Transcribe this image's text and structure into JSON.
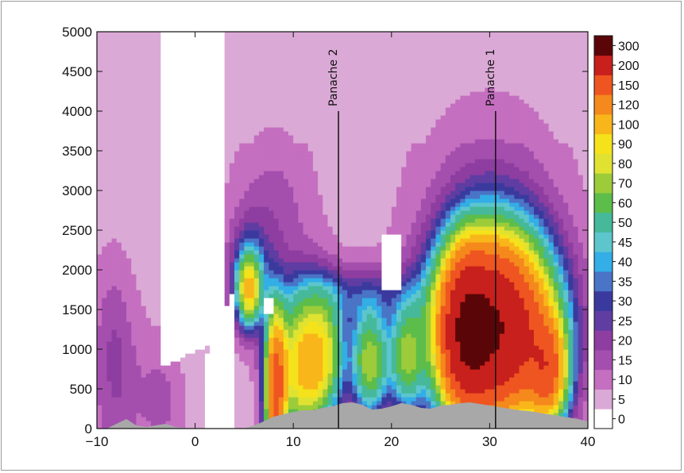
{
  "chart_data": {
    "type": "heatmap",
    "title": "",
    "xlabel": "",
    "ylabel": "",
    "xlim": [
      -10,
      40
    ],
    "ylim": [
      0,
      5000
    ],
    "x_ticks": [
      -10,
      0,
      10,
      20,
      30,
      40
    ],
    "x_tick_labels": [
      "−10",
      "0",
      "10",
      "20",
      "30",
      "40"
    ],
    "y_ticks": [
      0,
      500,
      1000,
      1500,
      2000,
      2500,
      3000,
      3500,
      4000,
      4500,
      5000
    ],
    "y_tick_labels": [
      "0",
      "500",
      "1000",
      "1500",
      "2000",
      "2500",
      "3000",
      "3500",
      "4000",
      "4500",
      "5000"
    ],
    "grid": false,
    "colorbar": {
      "placement": "right",
      "levels": [
        "0",
        "5",
        "10",
        "15",
        "20",
        "25",
        "30",
        "35",
        "40",
        "45",
        "50",
        "60",
        "70",
        "80",
        "90",
        "100",
        "120",
        "150",
        "200",
        "300"
      ],
      "colors": [
        "#ffffff",
        "#dba9d6",
        "#c56fc0",
        "#a44fae",
        "#8e3da0",
        "#5f3da2",
        "#3a3a9e",
        "#4a74c6",
        "#33aee6",
        "#5cc6cc",
        "#45b99a",
        "#5cbd4a",
        "#9ccc3a",
        "#e0e232",
        "#f5e21a",
        "#f9b61a",
        "#f5891c",
        "#ef5520",
        "#c8201c",
        "#5a0608"
      ]
    },
    "terrain_color": "#a8a8a8",
    "terrain": {
      "x": [
        -10,
        -9,
        -8,
        -7,
        -6,
        -5,
        -4,
        -3,
        -2,
        -1,
        0,
        1,
        2,
        3,
        4,
        5,
        6,
        7,
        8,
        9,
        10,
        11,
        12,
        13,
        14,
        15,
        16,
        17,
        18,
        19,
        20,
        21,
        22,
        23,
        24,
        25,
        26,
        27,
        28,
        29,
        30,
        31,
        32,
        33,
        34,
        35,
        36,
        37,
        38,
        39,
        40
      ],
      "y": [
        0,
        0,
        60,
        120,
        40,
        20,
        40,
        60,
        20,
        10,
        0,
        0,
        0,
        0,
        0,
        0,
        40,
        90,
        150,
        180,
        210,
        230,
        230,
        260,
        280,
        320,
        330,
        300,
        240,
        250,
        280,
        320,
        300,
        260,
        250,
        290,
        300,
        320,
        330,
        310,
        290,
        270,
        250,
        230,
        220,
        200,
        180,
        160,
        140,
        120,
        90
      ]
    },
    "annotations": [
      {
        "text": "Panache 2",
        "x": 14.6,
        "y_top": 4000
      },
      {
        "text": "Panache 1",
        "x": 30.6,
        "y_top": 4000
      }
    ]
  }
}
